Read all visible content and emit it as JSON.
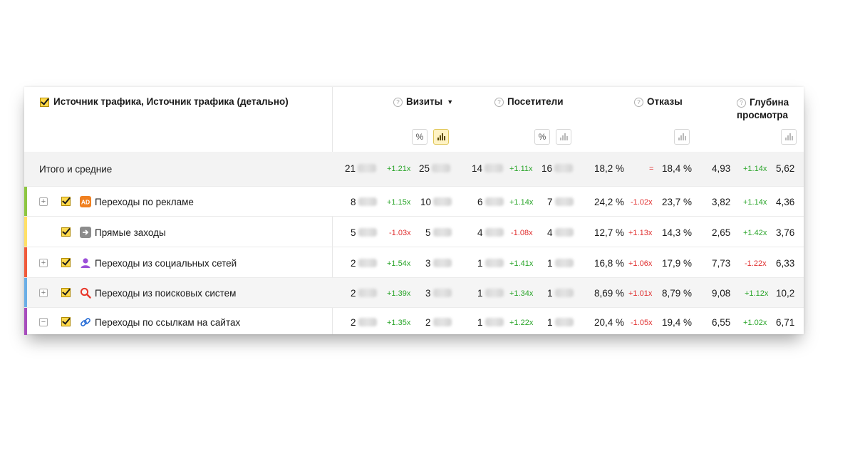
{
  "header": {
    "dimension_title": "Источник трафика, Источник трафика (детально)",
    "columns": [
      {
        "label": "Визиты",
        "sorted": true,
        "sort_arrow": "▼"
      },
      {
        "label": "Посетители"
      },
      {
        "label": "Отказы"
      },
      {
        "label": "Глубина",
        "label_line2": "просмотра"
      }
    ],
    "toggle_percent": "%"
  },
  "total": {
    "label": "Итого и средние",
    "visits": "21",
    "visits_change": "+1.21x",
    "visits_prev": "25",
    "visitors": "14",
    "visitors_change": "+1.11x",
    "visitors_prev": "16",
    "bounce": "18,2 %",
    "bounce_change": "=",
    "bounce_prev": "18,4 %",
    "depth": "4,93",
    "depth_change": "+1.14x",
    "depth_prev": "5,62"
  },
  "rows": [
    {
      "label": "Переходы по рекламе",
      "stripe": "#8dc641",
      "icon": "ad-icon",
      "expander": "+",
      "visits": "8",
      "visits_change": "+1.15x",
      "visits_prev": "10",
      "visitors": "6",
      "visitors_change": "+1.14x",
      "visitors_prev": "7",
      "bounce": "24,2 %",
      "bounce_change": "-1.02x",
      "bounce_prev": "23,7 %",
      "depth": "3,82",
      "depth_change": "+1.14x",
      "depth_prev": "4,36"
    },
    {
      "label": "Прямые заходы",
      "stripe": "#ffe066",
      "icon": "direct-entry-icon",
      "expander": "",
      "visits": "5",
      "visits_change": "-1.03x",
      "visits_prev": "5",
      "visitors": "4",
      "visitors_change": "-1.08x",
      "visitors_prev": "4",
      "bounce": "12,7 %",
      "bounce_change": "+1.13x",
      "bounce_prev": "14,3 %",
      "depth": "2,65",
      "depth_change": "+1.42x",
      "depth_prev": "3,76"
    },
    {
      "label": "Переходы из социальных сетей",
      "stripe": "#f05a3a",
      "icon": "social-person-icon",
      "expander": "+",
      "visits": "2",
      "visits_change": "+1.54x",
      "visits_prev": "3",
      "visitors": "1",
      "visitors_change": "+1.41x",
      "visitors_prev": "1",
      "bounce": "16,8 %",
      "bounce_change": "+1.06x",
      "bounce_prev": "17,9 %",
      "depth": "7,73",
      "depth_change": "-1.22x",
      "depth_prev": "6,33"
    },
    {
      "label": "Переходы из поисковых систем",
      "stripe": "#6aaee6",
      "icon": "search-icon",
      "expander": "+",
      "visits": "2",
      "visits_change": "+1.39x",
      "visits_prev": "3",
      "visitors": "1",
      "visitors_change": "+1.34x",
      "visitors_prev": "1",
      "bounce": "8,69 %",
      "bounce_change": "+1.01x",
      "bounce_prev": "8,79 %",
      "depth": "9,08",
      "depth_change": "+1.12x",
      "depth_prev": "10,2"
    },
    {
      "label": "Переходы по ссылкам на сайтах",
      "stripe": "#a74dbd",
      "icon": "link-icon",
      "expander": "−",
      "visits": "2",
      "visits_change": "+1.35x",
      "visits_prev": "2",
      "visitors": "1",
      "visitors_change": "+1.22x",
      "visitors_prev": "1",
      "bounce": "20,4 %",
      "bounce_change": "-1.05x",
      "bounce_prev": "19,4 %",
      "depth": "6,55",
      "depth_change": "+1.02x",
      "depth_prev": "6,71"
    }
  ],
  "colors": {
    "positive": "#2aa52a",
    "negative": "#e03030",
    "checkbox": "#ffd94a",
    "active_toggle": "#fff3c4"
  }
}
